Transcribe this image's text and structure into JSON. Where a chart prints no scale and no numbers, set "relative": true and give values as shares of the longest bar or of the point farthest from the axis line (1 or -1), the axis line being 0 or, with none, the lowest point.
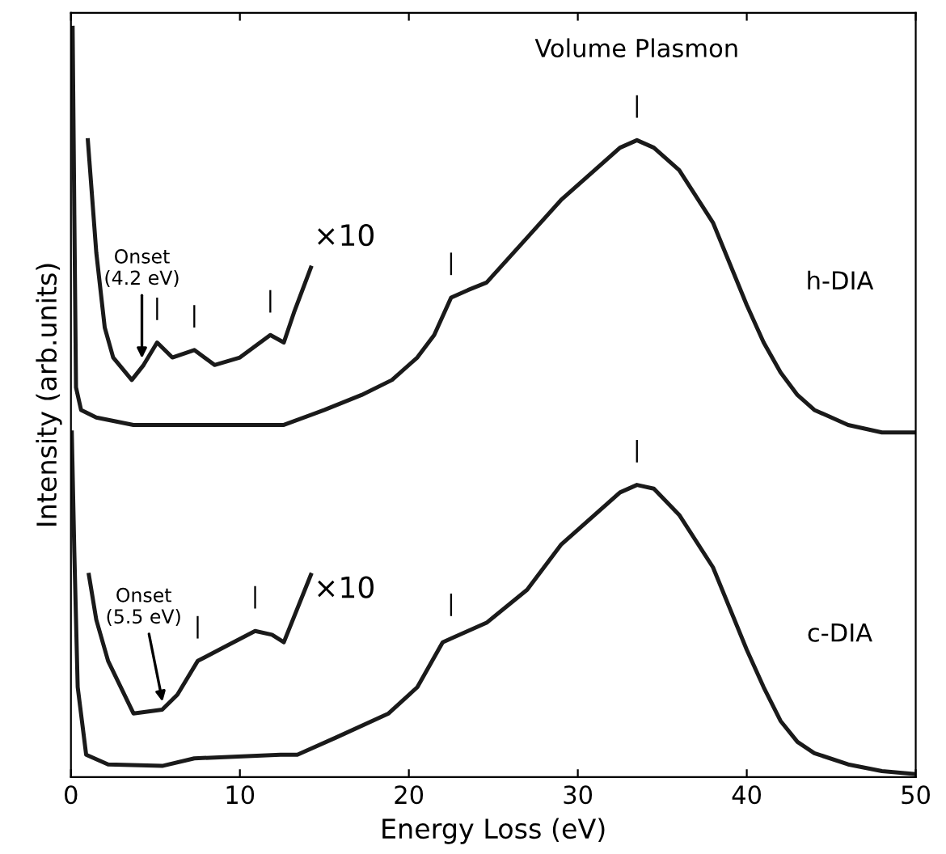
{
  "chart_data": {
    "type": "line",
    "relative": true,
    "xlabel": "Energy Loss (eV)",
    "ylabel": "Intensity (arb.units)",
    "xlim": [
      0,
      50
    ],
    "xticks": [
      0,
      10,
      20,
      30,
      40,
      50
    ],
    "tick_labels": "x",
    "grid": false,
    "marker": "none",
    "line_style": "solid",
    "series": [
      {
        "color": "#1a1a1a",
        "x": [
          0.1,
          0.2,
          0.3,
          0.6,
          1.5,
          3.7,
          8,
          12.6,
          15,
          17.2,
          19,
          20.5,
          21.5,
          22.5,
          23.5,
          24.6,
          27,
          29,
          31,
          32.5,
          33.5,
          34.5,
          36,
          38,
          40,
          41,
          42,
          43,
          44,
          46,
          48,
          50
        ],
        "values": [
          1.0,
          0.75,
          0.52,
          0.49,
          0.48,
          0.47,
          0.47,
          0.47,
          0.49,
          0.51,
          0.53,
          0.56,
          0.59,
          0.64,
          0.65,
          0.66,
          0.72,
          0.77,
          0.81,
          0.84,
          0.85,
          0.84,
          0.81,
          0.74,
          0.63,
          0.58,
          0.54,
          0.51,
          0.49,
          0.47,
          0.46,
          0.46
        ]
      },
      {
        "color": "#1a1a1a",
        "x": [
          1.0,
          1.5,
          2,
          2.5,
          3.6,
          4.3,
          5.1,
          6,
          7.3,
          8.5,
          10,
          11.8,
          12.6,
          13.2,
          14.2
        ],
        "values": [
          0.85,
          0.7,
          0.6,
          0.56,
          0.53,
          0.55,
          0.58,
          0.56,
          0.57,
          0.55,
          0.56,
          0.59,
          0.58,
          0.62,
          0.68
        ]
      },
      {
        "color": "#1a1a1a",
        "x": [
          0.05,
          0.2,
          0.4,
          0.9,
          2.2,
          5.4,
          7.3,
          12.4,
          13.4,
          15.7,
          18.8,
          20.5,
          22,
          22.5,
          24.6,
          27,
          29,
          31,
          32.5,
          33.5,
          34.5,
          36,
          38,
          40,
          41,
          42,
          43,
          44,
          46,
          48,
          50
        ],
        "values": [
          0.46,
          0.3,
          0.12,
          0.03,
          0.017,
          0.015,
          0.025,
          0.03,
          0.03,
          0.053,
          0.085,
          0.12,
          0.18,
          0.185,
          0.206,
          0.25,
          0.31,
          0.35,
          0.38,
          0.39,
          0.385,
          0.35,
          0.28,
          0.17,
          0.12,
          0.075,
          0.047,
          0.032,
          0.017,
          0.008,
          0.004
        ]
      },
      {
        "color": "#1a1a1a",
        "x": [
          1.06,
          1.5,
          2.2,
          3.7,
          5.4,
          6.3,
          7.5,
          9.2,
          10.9,
          11.9,
          12.6,
          14.2
        ],
        "values": [
          0.27,
          0.21,
          0.155,
          0.085,
          0.09,
          0.11,
          0.155,
          0.175,
          0.195,
          0.19,
          0.18,
          0.27
        ]
      }
    ],
    "annotations": [
      "Volume Plasmon",
      "×10",
      "h-DIA",
      "×10",
      "c-DIA",
      {
        "text": "|",
        "x": 33.5,
        "y": 0.85
      },
      {
        "text": "|",
        "x": 22.5,
        "y": 0.64
      },
      {
        "text": "|",
        "x": 5.1,
        "y": 0.58
      },
      {
        "text": "|",
        "x": 7.3,
        "y": 0.57
      },
      {
        "text": "|",
        "x": 11.8,
        "y": 0.59
      },
      {
        "text": "Onset\n(4.2 eV)",
        "x": 4.2,
        "y": 0.55
      },
      {
        "text": "|",
        "x": 33.5,
        "y": 0.39
      },
      {
        "text": "|",
        "x": 22.5,
        "y": 0.185
      },
      {
        "text": "|",
        "x": 7.5,
        "y": 0.155
      },
      {
        "text": "|",
        "x": 10.9,
        "y": 0.195
      },
      {
        "text": "Onset\n(5.5 eV)",
        "x": 5.5,
        "y": 0.092
      }
    ]
  }
}
